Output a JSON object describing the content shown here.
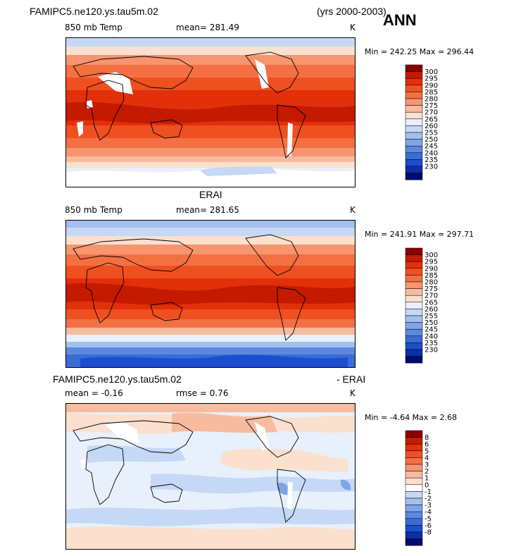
{
  "header": {
    "case_name": "FAMIPC5.ne120.ys.tau5m.02",
    "years": "(yrs 2000-2003)",
    "season": "ANN"
  },
  "chart_data": [
    {
      "type": "heatmap",
      "panel_title": "",
      "variable_label": "850 mb Temp",
      "mean_text": "mean= 281.49",
      "units": "K",
      "min_max_text": "Min = 242.25  Max = 296.44",
      "min": 242.25,
      "max": 296.44,
      "mean": 281.49,
      "colorbar_levels": [
        "300",
        "295",
        "290",
        "285",
        "280",
        "275",
        "270",
        "265",
        "260",
        "255",
        "250",
        "245",
        "240",
        "235",
        "230"
      ],
      "colorbar_colors": [
        "#8b0000",
        "#c41a00",
        "#e1300a",
        "#ef5020",
        "#f47043",
        "#f6956f",
        "#f7bb9f",
        "#fae0cd",
        "#e8f0fb",
        "#c5d8f5",
        "#a2bfee",
        "#7ea5e8",
        "#5b89e0",
        "#3a6cd8",
        "#1c4ecc",
        "#0a2fa8",
        "#020a6e"
      ],
      "missing_data": "white patches over Tibet, Andes, Rockies, East Africa (below 850 mb)"
    },
    {
      "type": "heatmap",
      "panel_title": "ERAI",
      "variable_label": "850 mb Temp",
      "mean_text": "mean= 281.65",
      "units": "K",
      "min_max_text": "Min = 241.91  Max = 297.71",
      "min": 241.91,
      "max": 297.71,
      "mean": 281.65,
      "colorbar_levels": [
        "300",
        "295",
        "290",
        "285",
        "280",
        "275",
        "270",
        "265",
        "260",
        "255",
        "250",
        "245",
        "240",
        "235",
        "230"
      ],
      "colorbar_colors": [
        "#8b0000",
        "#c41a00",
        "#e1300a",
        "#ef5020",
        "#f47043",
        "#f6956f",
        "#f7bb9f",
        "#fae0cd",
        "#e8f0fb",
        "#c5d8f5",
        "#a2bfee",
        "#7ea5e8",
        "#5b89e0",
        "#3a6cd8",
        "#1c4ecc",
        "#0a2fa8",
        "#020a6e"
      ]
    },
    {
      "type": "heatmap",
      "panel_title_left": "FAMIPC5.ne120.ys.tau5m.02",
      "panel_title_right": "- ERAI",
      "mean_text": "mean =   -0.16",
      "rmse_text": "rmse =    0.76",
      "units": "K",
      "min_max_text": "Min =   -4.64  Max =    2.68",
      "min": -4.64,
      "max": 2.68,
      "mean": -0.16,
      "rmse": 0.76,
      "colorbar_levels": [
        "8",
        "6",
        "5",
        "4",
        "3",
        "2",
        "1",
        "0",
        "-1",
        "-2",
        "-3",
        "-4",
        "-5",
        "-6",
        "-8"
      ],
      "colorbar_colors": [
        "#8b0000",
        "#c41a00",
        "#e1300a",
        "#ef5020",
        "#f47043",
        "#f6956f",
        "#f7bb9f",
        "#fae0cd",
        "#ffffff",
        "#c5d8f5",
        "#a2bfee",
        "#7ea5e8",
        "#5b89e0",
        "#3a6cd8",
        "#1c4ecc",
        "#0a2fa8",
        "#020a6e"
      ]
    }
  ]
}
